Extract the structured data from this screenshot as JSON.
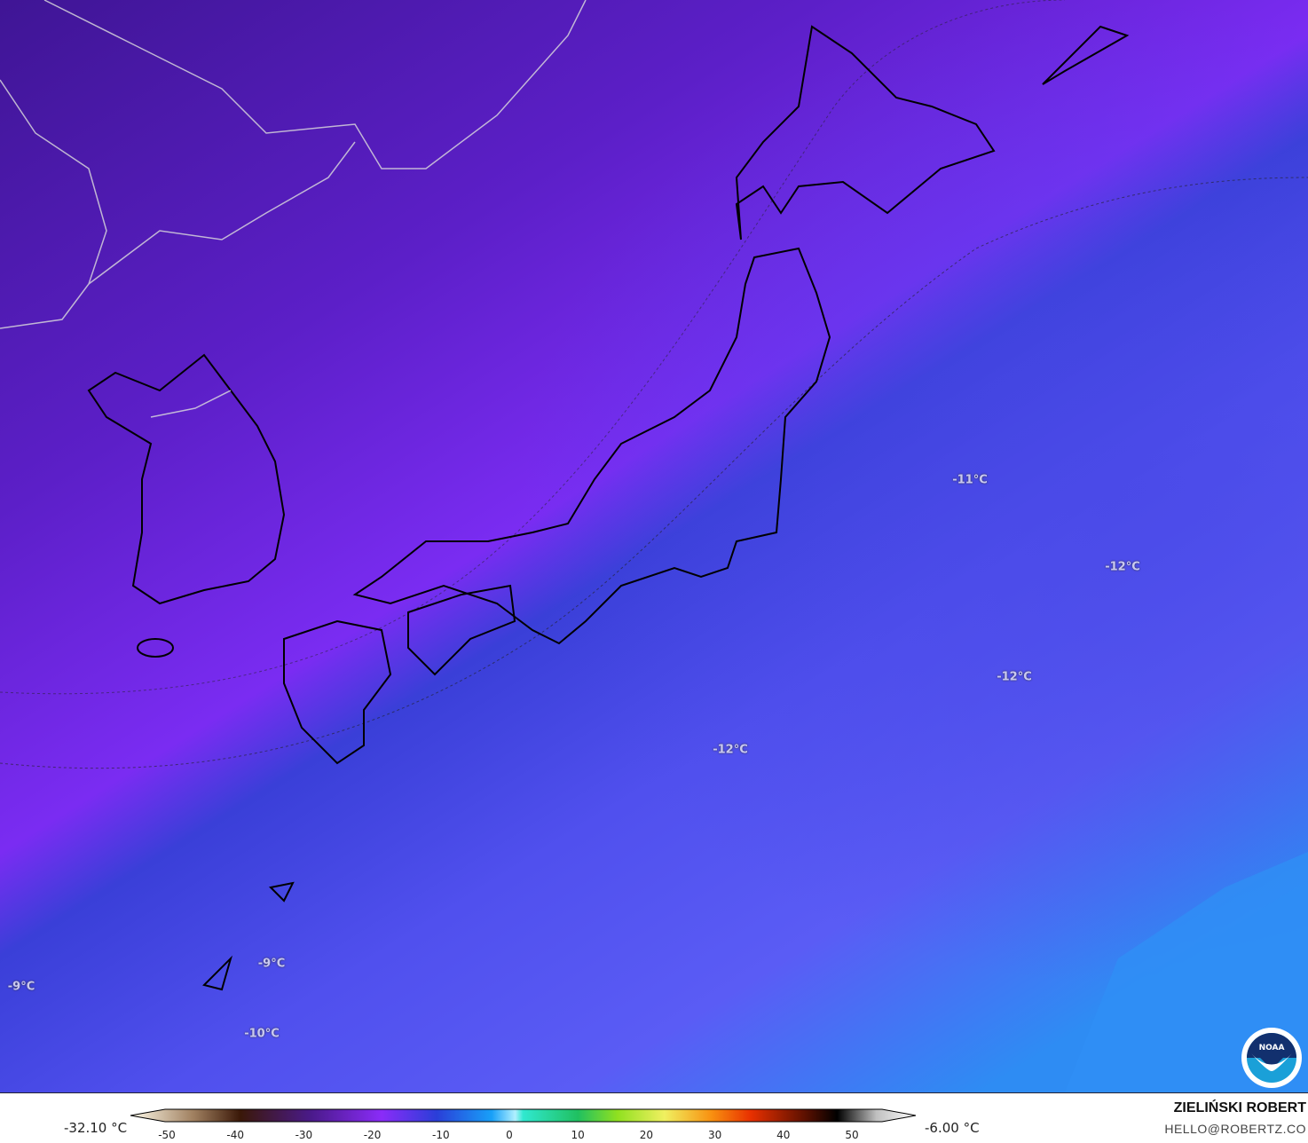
{
  "map": {
    "variable": "temperature",
    "unit": "°C",
    "region": "Japan / Korea",
    "labels": [
      {
        "text": "-11°C",
        "value": -11
      },
      {
        "text": "-12°C",
        "value": -12
      },
      {
        "text": "-12°C",
        "value": -12
      },
      {
        "text": "-12°C",
        "value": -12
      },
      {
        "text": "-9°C",
        "value": -9
      },
      {
        "text": "-9°C",
        "value": -9
      },
      {
        "text": "-10°C",
        "value": -10
      }
    ],
    "colors": {
      "cold": "#4a1a9e",
      "mid": "#7a2cf0",
      "ocean": "#5a5af5",
      "warm": "#2f8ef5"
    }
  },
  "legend": {
    "min_label": "-32.10 °C",
    "max_label": "-6.00 °C",
    "ticks": [
      "-50",
      "-40",
      "-30",
      "-20",
      "-10",
      "0",
      "10",
      "20",
      "30",
      "40",
      "50"
    ],
    "range": [
      -50,
      55
    ]
  },
  "credits": {
    "author": "ZIELIŃSKI ROBERT",
    "email": "HELLO@ROBERTZ.CO",
    "logo": "NOAA"
  }
}
